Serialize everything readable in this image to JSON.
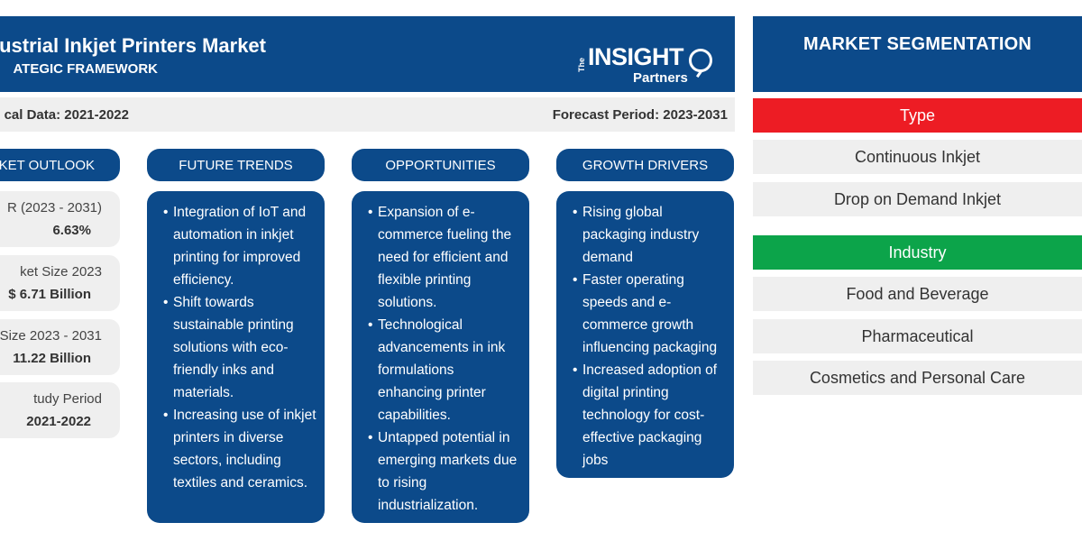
{
  "header": {
    "title": "ustrial Inkjet Printers Market",
    "subtitle": "ATEGIC FRAMEWORK",
    "logo": {
      "the": "The",
      "insight": "INSIGHT",
      "partners": "Partners"
    }
  },
  "periods": {
    "historical": "cal Data: 2021-2022",
    "forecast": "Forecast Period: 2023-2031"
  },
  "sections": {
    "market_outlook": "KET OUTLOOK",
    "future_trends": "FUTURE TRENDS",
    "opportunities": "OPPORTUNITIES",
    "growth_drivers": "GROWTH DRIVERS"
  },
  "outlook": [
    {
      "label": "R (2023 - 2031)",
      "value": "6.63%"
    },
    {
      "label": "ket Size 2023",
      "value": "$ 6.71 Billion"
    },
    {
      "label": "Size 2023 - 2031",
      "value": "11.22 Billion"
    },
    {
      "label": "tudy Period",
      "value": "2021-2022"
    }
  ],
  "future_trends": [
    "Integration of IoT and automation in inkjet printing for improved efficiency.",
    "Shift towards sustainable printing solutions with eco-friendly inks and materials.",
    "Increasing use of inkjet printers in diverse sectors, including textiles and ceramics."
  ],
  "opportunities": [
    "Expansion of e-commerce fueling the need for efficient and flexible printing solutions.",
    "Technological advancements in ink formulations enhancing printer capabilities.",
    "Untapped potential in emerging markets due to rising industrialization."
  ],
  "growth_drivers": [
    "Rising global packaging industry demand",
    "Faster operating speeds and e-commerce growth influencing packaging",
    "Increased adoption of digital printing technology for cost-effective packaging jobs"
  ],
  "segmentation": {
    "title": "MARKET SEGMENTATION",
    "type": {
      "label": "Type",
      "color": "#ed1c24",
      "items": [
        "Continuous Inkjet",
        "Drop on Demand Inkjet"
      ]
    },
    "industry": {
      "label": "Industry",
      "color": "#0ca44a",
      "items": [
        "Food and Beverage",
        "Pharmaceutical",
        "Cosmetics and Personal Care"
      ]
    }
  },
  "colors": {
    "primary": "#0c4a8a",
    "panel": "#efefef"
  }
}
